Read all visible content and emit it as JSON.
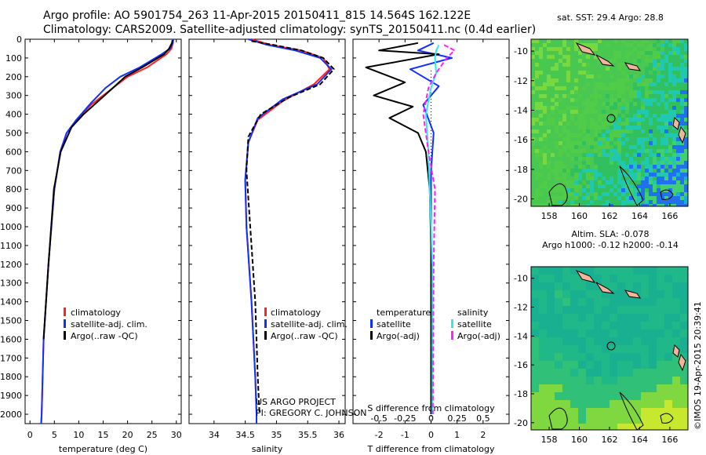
{
  "header": {
    "line1": "Argo profile: AO 5901754_263 11-Apr-2015 20150411_815 14.564S 162.122E",
    "line2": "Climatology: CARS2009. Satellite-adjusted climatology: synTS_20150411.nc (0.4d earlier)"
  },
  "colors": {
    "climatology": "#ff2020",
    "satellite": "#1030ff",
    "argo": "#000000",
    "sat_salinity": "#30e8f0",
    "argo_salinity": "#ff20ff"
  },
  "chart_data": [
    {
      "type": "line",
      "id": "temperature",
      "xlabel": "temperature (deg C)",
      "xlim": [
        -1,
        31
      ],
      "ylim": [
        2050,
        0
      ],
      "xticks": [
        0,
        5,
        10,
        15,
        20,
        25,
        30
      ],
      "yticks": [
        0,
        100,
        200,
        300,
        400,
        500,
        600,
        700,
        800,
        900,
        1000,
        1100,
        1200,
        1300,
        1400,
        1500,
        1600,
        1700,
        1800,
        1900,
        2000
      ],
      "legend": [
        "climatology",
        "satellite-adj. clim.",
        "Argo(..raw -QC)"
      ],
      "series": [
        {
          "name": "climatology",
          "color": "#ff2020",
          "x": [
            29.3,
            29.3,
            29.0,
            28.0,
            24.0,
            20.0,
            16.5,
            12.5,
            9.5,
            7.5,
            6.2,
            5.0,
            3.8,
            2.8,
            2.4,
            2.3
          ],
          "y": [
            0,
            20,
            50,
            80,
            150,
            200,
            270,
            350,
            430,
            500,
            600,
            800,
            1200,
            1600,
            2000,
            2050
          ]
        },
        {
          "name": "satellite-adj. clim.",
          "color": "#1030ff",
          "x": [
            29.4,
            29.3,
            28.7,
            27.0,
            22.5,
            18.5,
            15.5,
            12.5,
            9.5,
            7.5,
            6.2,
            5.0,
            3.8,
            2.8,
            2.4,
            2.3
          ],
          "y": [
            0,
            20,
            50,
            80,
            150,
            200,
            260,
            340,
            430,
            500,
            600,
            800,
            1200,
            1600,
            2000,
            2050
          ]
        },
        {
          "name": "Argo(..raw -QC)",
          "color": "#000000",
          "x": [
            29.2,
            29.1,
            28.5,
            27.5,
            23.0,
            19.5,
            17.0,
            14.0,
            11.0,
            8.5,
            6.3,
            4.9,
            3.8,
            2.8
          ],
          "y": [
            5,
            20,
            50,
            80,
            150,
            200,
            260,
            330,
            400,
            470,
            600,
            800,
            1200,
            1600
          ]
        }
      ]
    },
    {
      "type": "line",
      "id": "salinity",
      "xlabel": "salinity",
      "xlim": [
        33.6,
        36.1
      ],
      "ylim": [
        2050,
        0
      ],
      "xticks": [
        34,
        34.5,
        35,
        35.5,
        36
      ],
      "legend": [
        "climatology",
        "satellite-adj. clim.",
        "Argo(..raw -QC)"
      ],
      "annotations": [
        "US ARGO PROJECT",
        "PI: GREGORY C. JOHNSON"
      ],
      "series": [
        {
          "name": "climatology",
          "color": "#ff2020",
          "x": [
            34.6,
            34.9,
            35.4,
            35.75,
            35.85,
            35.6,
            35.1,
            34.7,
            34.55,
            34.5,
            34.52,
            34.6,
            34.66,
            34.68,
            34.68
          ],
          "y": [
            0,
            30,
            60,
            100,
            160,
            240,
            330,
            430,
            550,
            750,
            1000,
            1400,
            1800,
            2000,
            2050
          ]
        },
        {
          "name": "satellite-adj. clim.",
          "color": "#1030ff",
          "x": [
            34.55,
            34.85,
            35.3,
            35.7,
            35.88,
            35.65,
            35.1,
            34.7,
            34.55,
            34.5,
            34.52,
            34.6,
            34.66,
            34.68,
            34.68
          ],
          "y": [
            0,
            30,
            60,
            100,
            160,
            240,
            320,
            420,
            550,
            750,
            1000,
            1400,
            1800,
            2000,
            2050
          ]
        },
        {
          "name": "Argo(..raw -QC)",
          "color": "#000000",
          "x": [
            34.6,
            34.95,
            35.4,
            35.75,
            35.92,
            35.7,
            35.2,
            34.75,
            34.55,
            34.52,
            34.58,
            34.66,
            34.7,
            34.72,
            34.73
          ],
          "y": [
            10,
            30,
            60,
            100,
            160,
            240,
            310,
            400,
            520,
            700,
            1000,
            1400,
            1800,
            1950,
            2000
          ]
        }
      ]
    },
    {
      "type": "line",
      "id": "difference",
      "xlabel": "T difference from climatology",
      "xlabel_top": "S difference from climatology",
      "xlim": [
        -3,
        3
      ],
      "ylim": [
        2050,
        0
      ],
      "xticks": [
        -2,
        -1,
        0,
        1,
        2
      ],
      "xticks_top": [
        -0.5,
        -0.25,
        0,
        0.25,
        0.5
      ],
      "legend_headings": [
        "temperature",
        "salinity"
      ],
      "legend": [
        "satellite",
        "Argo(-adj)",
        "satellite",
        "Argo(-adj)"
      ],
      "series": [
        {
          "name": "satellite",
          "color": "#1030ff",
          "x": [
            0.1,
            -0.5,
            0.8,
            -0.8,
            0.3,
            -0.3,
            0.1,
            0,
            0,
            0,
            0
          ],
          "y": [
            20,
            60,
            100,
            160,
            250,
            350,
            500,
            700,
            1000,
            1500,
            2000
          ]
        },
        {
          "name": "Argo(-adj)",
          "color": "#000000",
          "x": [
            -0.5,
            -2.0,
            0.3,
            -2.5,
            -1.0,
            -2.2,
            -0.7,
            -1.6,
            -0.5,
            -0.2,
            -0.05,
            0,
            0,
            0
          ],
          "y": [
            20,
            60,
            80,
            150,
            230,
            300,
            360,
            420,
            500,
            600,
            800,
            1100,
            1500,
            2000
          ]
        },
        {
          "name": "satellite",
          "color": "#30e8f0",
          "x": [
            0.3,
            0.2,
            0.15,
            0.2,
            0.0,
            -0.2,
            -0.1,
            -0.05,
            0.05,
            0.05
          ],
          "y": [
            30,
            60,
            100,
            180,
            260,
            400,
            600,
            800,
            1200,
            2000
          ]
        },
        {
          "name": "Argo(-adj)",
          "color": "#ff20ff",
          "x": [
            0.5,
            0.9,
            0.6,
            0.2,
            -0.1,
            -0.3,
            -0.1,
            0.15,
            0.1,
            0.08,
            0.07
          ],
          "y": [
            30,
            60,
            100,
            180,
            260,
            400,
            600,
            800,
            1200,
            1600,
            2000
          ]
        }
      ]
    }
  ],
  "maps": {
    "top": {
      "title": "sat. SST: 29.4 Argo: 28.8",
      "xticks": [
        158,
        160,
        162,
        164,
        166
      ],
      "yticks": [
        -10,
        -12,
        -14,
        -16,
        -18,
        -20
      ]
    },
    "bottom": {
      "title1": "Altim. SLA: -0.078",
      "title2": "Argo h1000: -0.12 h2000: -0.14",
      "xticks": [
        158,
        160,
        162,
        164,
        166
      ],
      "yticks": [
        -10,
        -12,
        -14,
        -16,
        -18,
        -20
      ]
    }
  },
  "stamp": "©IMOS 19-Apr-2015 20:39:41"
}
